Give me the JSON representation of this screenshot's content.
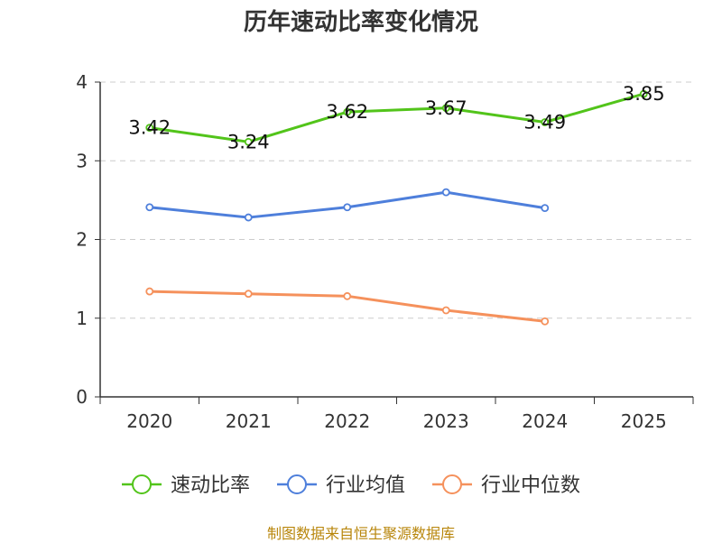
{
  "chart_data": {
    "type": "line",
    "title": "历年速动比率变化情况",
    "categories": [
      "2020",
      "2021",
      "2022",
      "2023",
      "2024",
      "2025"
    ],
    "ylim": [
      0,
      4
    ],
    "yticks": [
      0,
      1,
      2,
      3,
      4
    ],
    "grid": true,
    "legend_position": "bottom",
    "series": [
      {
        "name": "速动比率",
        "color": "#52c41a",
        "values": [
          3.42,
          3.24,
          3.62,
          3.67,
          3.49,
          3.85
        ],
        "labels": [
          "3.42",
          "3.24",
          "3.62",
          "3.67",
          "3.49",
          "3.85"
        ]
      },
      {
        "name": "行业均值",
        "color": "#4e7fdb",
        "values": [
          2.41,
          2.28,
          2.41,
          2.6,
          2.4,
          null
        ]
      },
      {
        "name": "行业中位数",
        "color": "#f5915c",
        "values": [
          1.34,
          1.31,
          1.28,
          1.1,
          0.96,
          null
        ]
      }
    ]
  },
  "source": "制图数据来自恒生聚源数据库"
}
